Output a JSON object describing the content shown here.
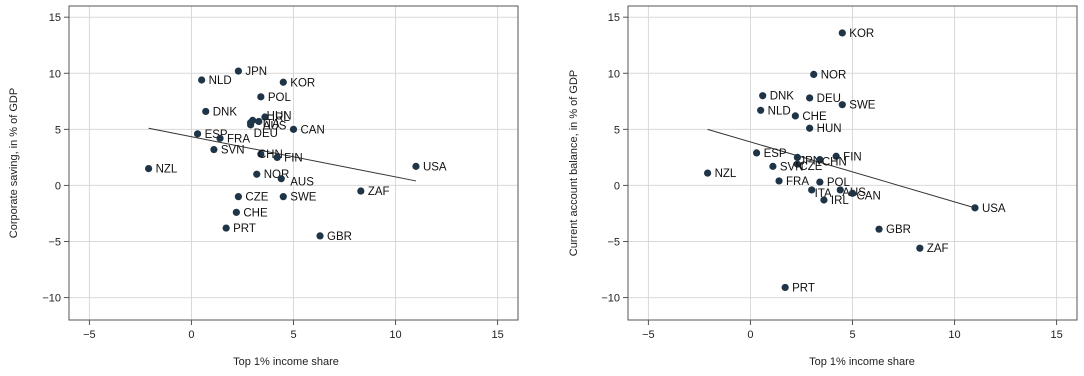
{
  "colors": {
    "point": "#1f3547",
    "grid": "#d9d9d9",
    "frame": "#555555",
    "line": "#333333"
  },
  "chart_data": [
    {
      "type": "scatter",
      "xlabel": "Top 1% income share",
      "ylabel": "Corporate saving, in % of GDP",
      "xlim": [
        -6,
        16
      ],
      "ylim": [
        -12,
        16
      ],
      "xticks": [
        -5,
        0,
        5,
        10,
        15
      ],
      "yticks": [
        -10,
        -5,
        0,
        5,
        10,
        15
      ],
      "xtick_labels": [
        "−5",
        "0",
        "5",
        "10",
        "15"
      ],
      "ytick_labels": [
        "−10",
        "−5",
        "0",
        "5",
        "10",
        "15"
      ],
      "grid": true,
      "points": [
        {
          "label": "JPN",
          "x": 2.3,
          "y": 10.2
        },
        {
          "label": "NLD",
          "x": 0.5,
          "y": 9.4
        },
        {
          "label": "KOR",
          "x": 4.5,
          "y": 9.2
        },
        {
          "label": "POL",
          "x": 3.4,
          "y": 7.9
        },
        {
          "label": "DNK",
          "x": 0.7,
          "y": 6.6
        },
        {
          "label": "IRL",
          "x": 3.6,
          "y": 6.1
        },
        {
          "label": "HUN",
          "x": 3.0,
          "y": 5.8
        },
        {
          "label": "ITA",
          "x": 2.9,
          "y": 5.6
        },
        {
          "label": "AUS",
          "x": 3.3,
          "y": 5.7
        },
        {
          "label": "DEU",
          "x": 2.9,
          "y": 5.4
        },
        {
          "label": "CAN",
          "x": 5.0,
          "y": 5.0
        },
        {
          "label": "ESP",
          "x": 0.3,
          "y": 4.6
        },
        {
          "label": "FRA",
          "x": 1.4,
          "y": 4.2
        },
        {
          "label": "SVN",
          "x": 1.1,
          "y": 3.2
        },
        {
          "label": "CHN",
          "x": 3.4,
          "y": 2.8
        },
        {
          "label": "FIN",
          "x": 4.2,
          "y": 2.5
        },
        {
          "label": "USA",
          "x": 11.0,
          "y": 1.7
        },
        {
          "label": "NZL",
          "x": -2.1,
          "y": 1.5
        },
        {
          "label": "NOR",
          "x": 3.2,
          "y": 1.0
        },
        {
          "label": "AUS",
          "x": 4.4,
          "y": 0.6
        },
        {
          "label": "ZAF",
          "x": 8.3,
          "y": -0.5
        },
        {
          "label": "CZE",
          "x": 2.3,
          "y": -1.0
        },
        {
          "label": "SWE",
          "x": 4.5,
          "y": -1.0
        },
        {
          "label": "CHE",
          "x": 2.2,
          "y": -2.4
        },
        {
          "label": "PRT",
          "x": 1.7,
          "y": -3.8
        },
        {
          "label": "GBR",
          "x": 6.3,
          "y": -4.5
        }
      ],
      "fit_line": {
        "x": [
          -2.1,
          11.0
        ],
        "y": [
          5.1,
          0.4
        ]
      }
    },
    {
      "type": "scatter",
      "xlabel": "Top 1% income share",
      "ylabel": "Current account balance, in % of GDP",
      "xlim": [
        -6,
        16
      ],
      "ylim": [
        -12,
        16
      ],
      "xticks": [
        -5,
        0,
        5,
        10,
        15
      ],
      "yticks": [
        -10,
        -5,
        0,
        5,
        10,
        15
      ],
      "xtick_labels": [
        "−5",
        "0",
        "5",
        "10",
        "15"
      ],
      "ytick_labels": [
        "−10",
        "−5",
        "0",
        "5",
        "10",
        "15"
      ],
      "grid": true,
      "points": [
        {
          "label": "KOR",
          "x": 4.5,
          "y": 13.6
        },
        {
          "label": "NOR",
          "x": 3.1,
          "y": 9.9
        },
        {
          "label": "DNK",
          "x": 0.6,
          "y": 8.0
        },
        {
          "label": "DEU",
          "x": 2.9,
          "y": 7.8
        },
        {
          "label": "SWE",
          "x": 4.5,
          "y": 7.2
        },
        {
          "label": "NLD",
          "x": 0.5,
          "y": 6.7
        },
        {
          "label": "CHE",
          "x": 2.2,
          "y": 6.2
        },
        {
          "label": "HUN",
          "x": 2.9,
          "y": 5.1
        },
        {
          "label": "ESP",
          "x": 0.3,
          "y": 2.9
        },
        {
          "label": "FIN",
          "x": 4.2,
          "y": 2.6
        },
        {
          "label": "JPN",
          "x": 2.3,
          "y": 2.5
        },
        {
          "label": "CHN",
          "x": 3.4,
          "y": 2.3
        },
        {
          "label": "CZE",
          "x": 2.3,
          "y": 1.9
        },
        {
          "label": "SVN",
          "x": 1.1,
          "y": 1.7
        },
        {
          "label": "NZL",
          "x": -2.1,
          "y": 1.1
        },
        {
          "label": "FRA",
          "x": 1.4,
          "y": 0.4
        },
        {
          "label": "POL",
          "x": 3.4,
          "y": 0.3
        },
        {
          "label": "ITA",
          "x": 3.0,
          "y": -0.4
        },
        {
          "label": "AUS",
          "x": 4.4,
          "y": -0.4
        },
        {
          "label": "CAN",
          "x": 5.0,
          "y": -0.7
        },
        {
          "label": "IRL",
          "x": 3.6,
          "y": -1.3
        },
        {
          "label": "USA",
          "x": 11.0,
          "y": -2.0
        },
        {
          "label": "GBR",
          "x": 6.3,
          "y": -3.9
        },
        {
          "label": "ZAF",
          "x": 8.3,
          "y": -5.6
        },
        {
          "label": "PRT",
          "x": 1.7,
          "y": -9.1
        }
      ],
      "fit_line": {
        "x": [
          -2.1,
          11.0
        ],
        "y": [
          5.0,
          -2.0
        ]
      }
    }
  ]
}
